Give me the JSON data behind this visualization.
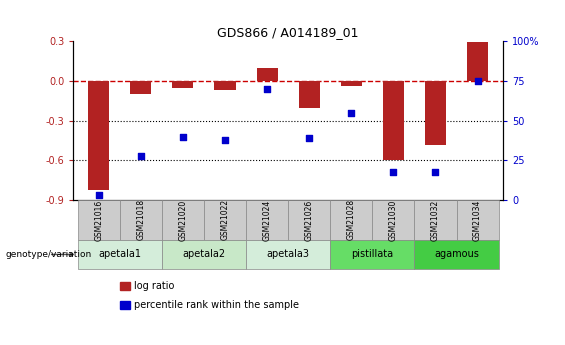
{
  "title": "GDS866 / A014189_01",
  "samples": [
    "GSM21016",
    "GSM21018",
    "GSM21020",
    "GSM21022",
    "GSM21024",
    "GSM21026",
    "GSM21028",
    "GSM21030",
    "GSM21032",
    "GSM21034"
  ],
  "log_ratio": [
    -0.82,
    -0.1,
    -0.05,
    -0.07,
    0.1,
    -0.2,
    -0.04,
    -0.6,
    -0.48,
    0.295
  ],
  "percentile_rank": [
    3,
    28,
    40,
    38,
    70,
    39,
    55,
    18,
    18,
    75
  ],
  "ylim_left": [
    -0.9,
    0.3
  ],
  "ylim_right": [
    0,
    100
  ],
  "yticks_left": [
    -0.9,
    -0.6,
    -0.3,
    0.0,
    0.3
  ],
  "yticks_right": [
    0,
    25,
    50,
    75,
    100
  ],
  "hlines": [
    -0.3,
    -0.6
  ],
  "bar_color": "#b22222",
  "dot_color": "#0000cc",
  "dashed_line_color": "#cc0000",
  "groups": [
    {
      "label": "apetala1",
      "indices": [
        0,
        1
      ],
      "color": "#d4edda"
    },
    {
      "label": "apetala2",
      "indices": [
        2,
        3
      ],
      "color": "#c8e8c8"
    },
    {
      "label": "apetala3",
      "indices": [
        4,
        5
      ],
      "color": "#d4edda"
    },
    {
      "label": "pistillata",
      "indices": [
        6,
        7
      ],
      "color": "#66dd66"
    },
    {
      "label": "agamous",
      "indices": [
        8,
        9
      ],
      "color": "#44cc44"
    }
  ],
  "sample_box_color": "#cccccc",
  "genotype_label": "genotype/variation",
  "legend_entries": [
    "log ratio",
    "percentile rank within the sample"
  ],
  "legend_colors": [
    "#b22222",
    "#0000cc"
  ],
  "bar_width": 0.5
}
